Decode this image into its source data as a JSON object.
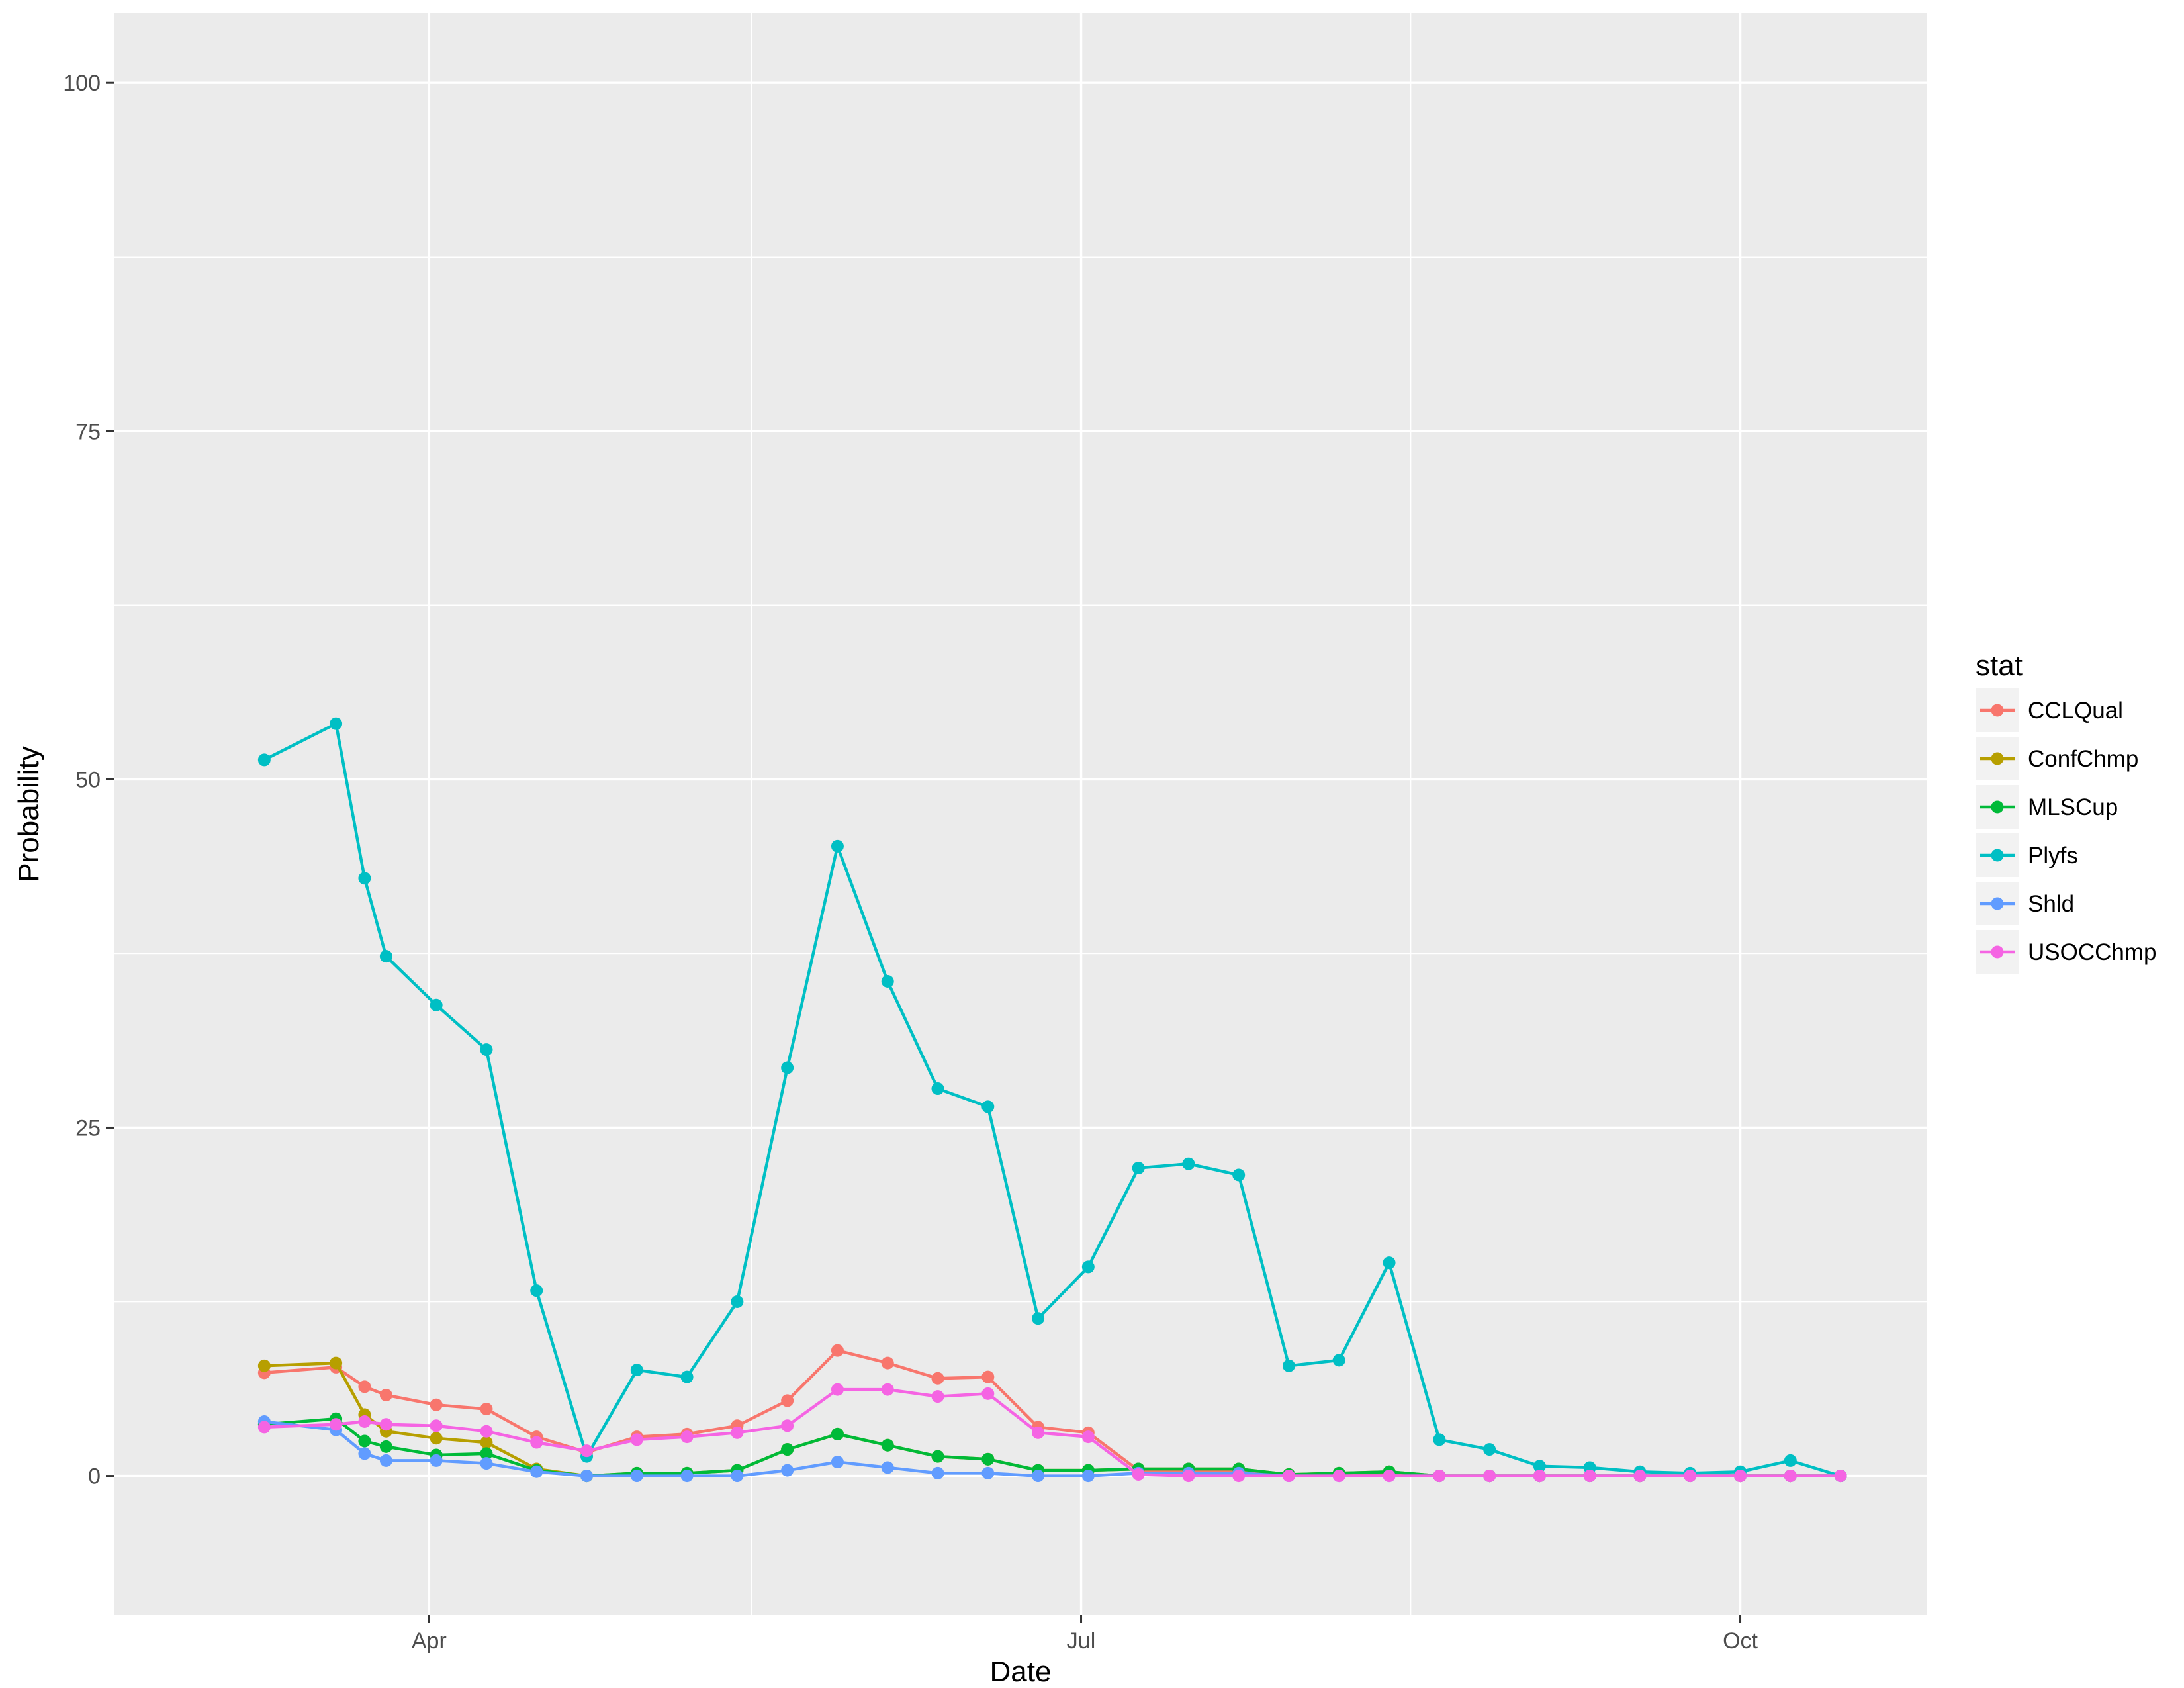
{
  "chart_data": {
    "type": "line",
    "xlabel": "Date",
    "ylabel": "Probability",
    "ylim": [
      -10,
      105
    ],
    "xlim": [
      "2016-02-17",
      "2016-10-27"
    ],
    "x_ticks": [
      {
        "date": "2016-04-01",
        "label": "Apr"
      },
      {
        "date": "2016-07-01",
        "label": "Jul"
      },
      {
        "date": "2016-10-01",
        "label": "Oct"
      }
    ],
    "x_minor_ticks": [
      "2016-05-16",
      "2016-08-16"
    ],
    "y_ticks": [
      0,
      25,
      50,
      75,
      100
    ],
    "y_minor_ticks": [
      12.5,
      37.5,
      62.5,
      87.5
    ],
    "grid": true,
    "legend": {
      "title": "stat",
      "position": "right"
    },
    "x": [
      "2016-03-09",
      "2016-03-19",
      "2016-03-23",
      "2016-03-26",
      "2016-04-02",
      "2016-04-09",
      "2016-04-16",
      "2016-04-23",
      "2016-04-30",
      "2016-05-07",
      "2016-05-14",
      "2016-05-21",
      "2016-05-28",
      "2016-06-04",
      "2016-06-11",
      "2016-06-18",
      "2016-06-25",
      "2016-07-02",
      "2016-07-09",
      "2016-07-16",
      "2016-07-23",
      "2016-07-30",
      "2016-08-06",
      "2016-08-13",
      "2016-08-20",
      "2016-08-27",
      "2016-09-03",
      "2016-09-10",
      "2016-09-17",
      "2016-09-24",
      "2016-10-01",
      "2016-10-08",
      "2016-10-15"
    ],
    "series": [
      {
        "name": "CCLQual",
        "color": "#F8766D",
        "values": [
          7.4,
          7.8,
          6.4,
          5.8,
          5.1,
          4.8,
          2.8,
          1.7,
          2.8,
          3.0,
          3.6,
          5.4,
          9.0,
          8.1,
          7.0,
          7.1,
          3.5,
          3.1,
          0.4,
          0.4,
          0.4,
          0.1,
          0.1,
          0.1,
          0.0,
          0.0,
          0.0,
          0.0,
          0.0,
          0.0,
          0.0,
          0.0,
          0.0
        ]
      },
      {
        "name": "ConfChmp",
        "color": "#B79F00",
        "values": [
          7.9,
          8.1,
          4.4,
          3.2,
          2.7,
          2.4,
          0.5,
          0.0,
          0.2,
          0.2,
          0.4,
          1.9,
          3.0,
          2.2,
          1.4,
          1.2,
          0.4,
          0.4,
          0.5,
          0.5,
          0.5,
          0.1,
          0.2,
          0.3,
          0.0,
          0.0,
          0.0,
          0.0,
          0.0,
          0.0,
          0.0,
          0.0,
          0.0
        ]
      },
      {
        "name": "MLSCup",
        "color": "#00BA38",
        "values": [
          3.7,
          4.1,
          2.5,
          2.1,
          1.5,
          1.6,
          0.4,
          0.0,
          0.2,
          0.2,
          0.4,
          1.9,
          3.0,
          2.2,
          1.4,
          1.2,
          0.4,
          0.4,
          0.5,
          0.5,
          0.5,
          0.1,
          0.2,
          0.3,
          0.0,
          0.0,
          0.0,
          0.0,
          0.0,
          0.0,
          0.0,
          0.0,
          0.0
        ]
      },
      {
        "name": "Plyfs",
        "color": "#00BFC4",
        "values": [
          51.4,
          54.0,
          42.9,
          37.3,
          33.8,
          30.6,
          13.3,
          1.4,
          7.6,
          7.1,
          12.5,
          29.3,
          45.2,
          35.5,
          27.8,
          26.5,
          11.3,
          15.0,
          22.1,
          22.4,
          21.6,
          7.9,
          8.3,
          15.3,
          2.6,
          1.9,
          0.7,
          0.6,
          0.3,
          0.2,
          0.3,
          1.1,
          0.0
        ]
      },
      {
        "name": "Shld",
        "color": "#619CFF",
        "values": [
          3.9,
          3.3,
          1.6,
          1.1,
          1.1,
          0.9,
          0.3,
          0.0,
          0.0,
          0.0,
          0.0,
          0.4,
          1.0,
          0.6,
          0.2,
          0.2,
          0.0,
          0.0,
          0.2,
          0.2,
          0.2,
          0.0,
          0.0,
          0.0,
          0.0,
          0.0,
          0.0,
          0.0,
          0.0,
          0.0,
          0.0,
          0.0,
          0.0
        ]
      },
      {
        "name": "USOCChmp",
        "color": "#F564E3",
        "values": [
          3.5,
          3.7,
          3.9,
          3.7,
          3.6,
          3.2,
          2.4,
          1.8,
          2.6,
          2.8,
          3.1,
          3.6,
          6.2,
          6.2,
          5.7,
          5.9,
          3.1,
          2.8,
          0.1,
          0.0,
          0.0,
          0.0,
          0.0,
          0.0,
          0.0,
          0.0,
          0.0,
          0.0,
          0.0,
          0.0,
          0.0,
          0.0,
          0.0
        ]
      }
    ]
  },
  "colors": {
    "panel_background": "#EBEBEB",
    "grid_major": "#FFFFFF",
    "legend_key_background": "#F2F2F2"
  }
}
